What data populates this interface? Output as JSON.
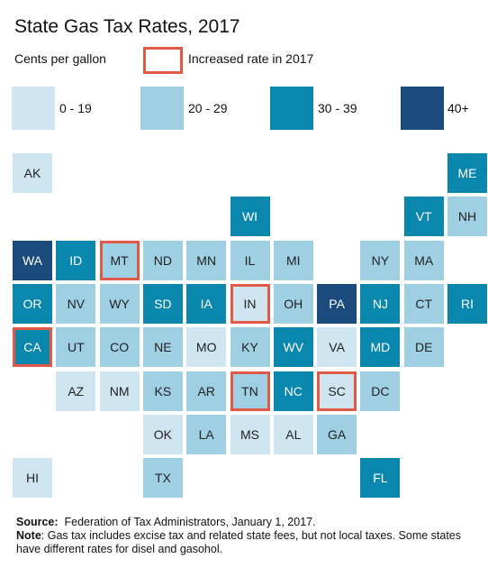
{
  "chart_data": {
    "type": "tile-map",
    "title": "State Gas Tax Rates, 2017",
    "subtitle": "Cents per gallon",
    "increased_label": "Increased rate in 2017",
    "increased_outline_color": "#e05a45",
    "legend": [
      {
        "label": "0 - 19",
        "color": "#cfe6f0"
      },
      {
        "label": "20 - 29",
        "color": "#9ecfe3"
      },
      {
        "label": "30 - 39",
        "color": "#0a87ad"
      },
      {
        "label": "40+",
        "color": "#1b4a7d"
      }
    ],
    "states": [
      {
        "abbr": "AK",
        "row": 0,
        "col": 0,
        "bin": 0,
        "increased": false
      },
      {
        "abbr": "ME",
        "row": 0,
        "col": 10,
        "bin": 2,
        "increased": false
      },
      {
        "abbr": "WI",
        "row": 1,
        "col": 5,
        "bin": 2,
        "increased": false
      },
      {
        "abbr": "VT",
        "row": 1,
        "col": 9,
        "bin": 2,
        "increased": false
      },
      {
        "abbr": "NH",
        "row": 1,
        "col": 10,
        "bin": 1,
        "increased": false
      },
      {
        "abbr": "WA",
        "row": 2,
        "col": 0,
        "bin": 3,
        "increased": false
      },
      {
        "abbr": "ID",
        "row": 2,
        "col": 1,
        "bin": 2,
        "increased": false
      },
      {
        "abbr": "MT",
        "row": 2,
        "col": 2,
        "bin": 1,
        "increased": true
      },
      {
        "abbr": "ND",
        "row": 2,
        "col": 3,
        "bin": 1,
        "increased": false
      },
      {
        "abbr": "MN",
        "row": 2,
        "col": 4,
        "bin": 1,
        "increased": false
      },
      {
        "abbr": "IL",
        "row": 2,
        "col": 5,
        "bin": 1,
        "increased": false
      },
      {
        "abbr": "MI",
        "row": 2,
        "col": 6,
        "bin": 1,
        "increased": false
      },
      {
        "abbr": "NY",
        "row": 2,
        "col": 8,
        "bin": 1,
        "increased": false
      },
      {
        "abbr": "MA",
        "row": 2,
        "col": 9,
        "bin": 1,
        "increased": false
      },
      {
        "abbr": "OR",
        "row": 3,
        "col": 0,
        "bin": 2,
        "increased": false
      },
      {
        "abbr": "NV",
        "row": 3,
        "col": 1,
        "bin": 1,
        "increased": false
      },
      {
        "abbr": "WY",
        "row": 3,
        "col": 2,
        "bin": 1,
        "increased": false
      },
      {
        "abbr": "SD",
        "row": 3,
        "col": 3,
        "bin": 2,
        "increased": false
      },
      {
        "abbr": "IA",
        "row": 3,
        "col": 4,
        "bin": 2,
        "increased": false
      },
      {
        "abbr": "IN",
        "row": 3,
        "col": 5,
        "bin": 0,
        "increased": true
      },
      {
        "abbr": "OH",
        "row": 3,
        "col": 6,
        "bin": 1,
        "increased": false
      },
      {
        "abbr": "PA",
        "row": 3,
        "col": 7,
        "bin": 3,
        "increased": false
      },
      {
        "abbr": "NJ",
        "row": 3,
        "col": 8,
        "bin": 2,
        "increased": false
      },
      {
        "abbr": "CT",
        "row": 3,
        "col": 9,
        "bin": 1,
        "increased": false
      },
      {
        "abbr": "RI",
        "row": 3,
        "col": 10,
        "bin": 2,
        "increased": false
      },
      {
        "abbr": "CA",
        "row": 4,
        "col": 0,
        "bin": 2,
        "increased": true
      },
      {
        "abbr": "UT",
        "row": 4,
        "col": 1,
        "bin": 1,
        "increased": false
      },
      {
        "abbr": "CO",
        "row": 4,
        "col": 2,
        "bin": 1,
        "increased": false
      },
      {
        "abbr": "NE",
        "row": 4,
        "col": 3,
        "bin": 1,
        "increased": false
      },
      {
        "abbr": "MO",
        "row": 4,
        "col": 4,
        "bin": 0,
        "increased": false
      },
      {
        "abbr": "KY",
        "row": 4,
        "col": 5,
        "bin": 1,
        "increased": false
      },
      {
        "abbr": "WV",
        "row": 4,
        "col": 6,
        "bin": 2,
        "increased": false
      },
      {
        "abbr": "VA",
        "row": 4,
        "col": 7,
        "bin": 0,
        "increased": false
      },
      {
        "abbr": "MD",
        "row": 4,
        "col": 8,
        "bin": 2,
        "increased": false
      },
      {
        "abbr": "DE",
        "row": 4,
        "col": 9,
        "bin": 1,
        "increased": false
      },
      {
        "abbr": "AZ",
        "row": 5,
        "col": 1,
        "bin": 0,
        "increased": false
      },
      {
        "abbr": "NM",
        "row": 5,
        "col": 2,
        "bin": 0,
        "increased": false
      },
      {
        "abbr": "KS",
        "row": 5,
        "col": 3,
        "bin": 1,
        "increased": false
      },
      {
        "abbr": "AR",
        "row": 5,
        "col": 4,
        "bin": 1,
        "increased": false
      },
      {
        "abbr": "TN",
        "row": 5,
        "col": 5,
        "bin": 1,
        "increased": true
      },
      {
        "abbr": "NC",
        "row": 5,
        "col": 6,
        "bin": 2,
        "increased": false
      },
      {
        "abbr": "SC",
        "row": 5,
        "col": 7,
        "bin": 0,
        "increased": true
      },
      {
        "abbr": "DC",
        "row": 5,
        "col": 8,
        "bin": 1,
        "increased": false
      },
      {
        "abbr": "OK",
        "row": 6,
        "col": 3,
        "bin": 0,
        "increased": false
      },
      {
        "abbr": "LA",
        "row": 6,
        "col": 4,
        "bin": 1,
        "increased": false
      },
      {
        "abbr": "MS",
        "row": 6,
        "col": 5,
        "bin": 0,
        "increased": false
      },
      {
        "abbr": "AL",
        "row": 6,
        "col": 6,
        "bin": 0,
        "increased": false
      },
      {
        "abbr": "GA",
        "row": 6,
        "col": 7,
        "bin": 1,
        "increased": false
      },
      {
        "abbr": "HI",
        "row": 7,
        "col": 0,
        "bin": 0,
        "increased": false
      },
      {
        "abbr": "TX",
        "row": 7,
        "col": 3,
        "bin": 1,
        "increased": false
      },
      {
        "abbr": "FL",
        "row": 7,
        "col": 8,
        "bin": 2,
        "increased": false
      }
    ]
  },
  "notes": {
    "source_label": "Source:",
    "source_text": "Federation of Tax Administrators, January 1, 2017.",
    "note_label": "Note",
    "note_text": ": Gas tax includes excise tax and related state fees, but not local taxes. Some states have different rates for disel and gasohol."
  }
}
